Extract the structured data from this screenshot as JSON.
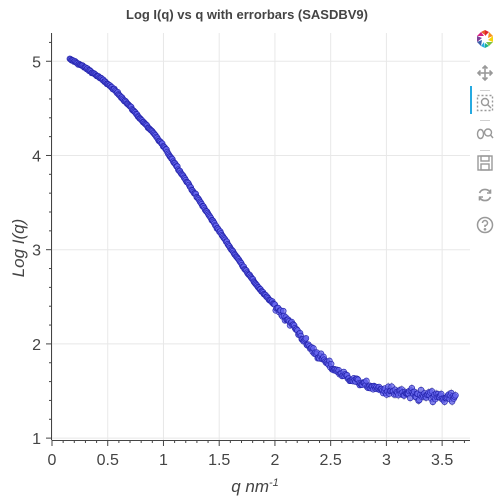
{
  "chart_data": {
    "type": "scatter",
    "title": "Log I(q) vs q with errorbars (SASDBV9)",
    "xlabel": "q nm",
    "xlabel_sup": "-1",
    "ylabel": "Log I(q)",
    "xlim": [
      0,
      3.75
    ],
    "ylim": [
      0.98,
      5.3
    ],
    "x_ticks": [
      0,
      0.5,
      1,
      1.5,
      2,
      2.5,
      3,
      3.5
    ],
    "x_tick_labels": [
      "0",
      "0.5",
      "1",
      "1.5",
      "2",
      "2.5",
      "3",
      "3.5"
    ],
    "y_ticks": [
      1,
      2,
      3,
      4,
      5
    ],
    "y_tick_labels": [
      "1",
      "2",
      "3",
      "4",
      "5"
    ],
    "grid": true,
    "marker_color": "#6666ee",
    "marker_edge_color": "#2222aa",
    "errorbar_color": "#bbbbbb",
    "x_range": [
      0.16,
      3.62
    ],
    "curve": {
      "q": [
        0.16,
        0.2,
        0.3,
        0.4,
        0.5,
        0.6,
        0.7,
        0.8,
        0.9,
        1.0,
        1.1,
        1.2,
        1.3,
        1.4,
        1.5,
        1.6,
        1.7,
        1.8,
        1.9,
        2.0,
        2.1,
        2.2,
        2.3,
        2.4,
        2.5,
        2.6,
        2.7,
        2.8,
        2.9,
        3.0,
        3.1,
        3.2,
        3.3,
        3.4,
        3.5,
        3.62
      ],
      "log_i": [
        5.02,
        5.0,
        4.93,
        4.85,
        4.76,
        4.65,
        4.52,
        4.38,
        4.25,
        4.1,
        3.92,
        3.74,
        3.56,
        3.38,
        3.2,
        3.02,
        2.85,
        2.68,
        2.53,
        2.41,
        2.28,
        2.14,
        1.98,
        1.87,
        1.76,
        1.68,
        1.62,
        1.57,
        1.53,
        1.5,
        1.48,
        1.46,
        1.45,
        1.44,
        1.43,
        1.42
      ]
    },
    "noise": [
      {
        "q_from": 0.16,
        "q_to": 2.0,
        "sd": 0.008
      },
      {
        "q_from": 2.0,
        "q_to": 2.5,
        "sd": 0.035
      },
      {
        "q_from": 2.5,
        "q_to": 3.0,
        "sd": 0.03
      },
      {
        "q_from": 3.0,
        "q_to": 3.62,
        "sd": 0.05
      }
    ],
    "point_count": 460
  },
  "toolbar": {
    "items": [
      {
        "name": "bokeh-logo-icon"
      },
      {
        "name": "pan-icon"
      },
      {
        "name": "box-zoom-icon"
      },
      {
        "name": "wheel-zoom-icon"
      },
      {
        "name": "save-icon"
      },
      {
        "name": "reset-icon"
      },
      {
        "name": "help-icon"
      }
    ]
  }
}
